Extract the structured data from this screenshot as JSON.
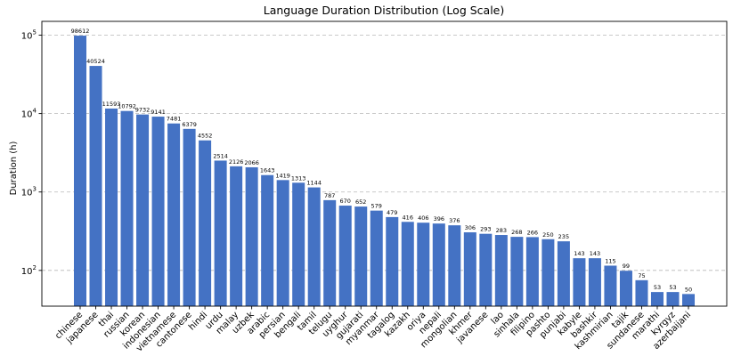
{
  "chart_data": {
    "type": "bar",
    "title": "Language Duration Distribution (Log Scale)",
    "xlabel": "",
    "ylabel": "Duration (h)",
    "yscale": "log",
    "ylim": [
      35,
      150000
    ],
    "yticks": [
      100,
      1000,
      10000,
      100000
    ],
    "ytick_labels": [
      [
        "10",
        "2"
      ],
      [
        "10",
        "3"
      ],
      [
        "10",
        "4"
      ],
      [
        "10",
        "5"
      ]
    ],
    "grid": "y-dashed",
    "bar_color": "#4472c4",
    "categories": [
      "chinese",
      "japanese",
      "thai",
      "russian",
      "korean",
      "indonesian",
      "vietnamese",
      "cantonese",
      "hindi",
      "urdu",
      "malay",
      "uzbek",
      "arabic",
      "persian",
      "bengali",
      "tamil",
      "telugu",
      "uyghur",
      "gujarati",
      "myanmar",
      "tagalog",
      "kazakh",
      "oriya",
      "nepali",
      "mongolian",
      "khmer",
      "javanese",
      "lao",
      "sinhala",
      "filipino",
      "pashto",
      "punjabi",
      "kabyle",
      "bashkir",
      "kashmirian",
      "tajik",
      "sundanese",
      "marathi",
      "kyrgyz",
      "azerbaijani"
    ],
    "values": [
      98612,
      40524,
      11593,
      10792,
      9732,
      9141,
      7481,
      6379,
      4552,
      2514,
      2126,
      2066,
      1643,
      1419,
      1313,
      1144,
      787,
      670,
      652,
      579,
      479,
      416,
      406,
      396,
      376,
      306,
      293,
      283,
      268,
      266,
      250,
      235,
      143,
      143,
      115,
      99,
      75,
      53,
      53,
      50
    ],
    "data_labels": [
      "98612",
      "40524",
      "11593",
      "10792",
      "9732",
      "9141",
      "7481",
      "6379",
      "4552",
      "2514",
      "2126",
      "2066",
      "1643",
      "1419",
      "1313",
      "1144",
      "787",
      "670",
      "652",
      "579",
      "479",
      "416",
      "406",
      "396",
      "376",
      "306",
      "293",
      "283",
      "268",
      "266",
      "250",
      "235",
      "143",
      "143",
      "115",
      "99",
      "75",
      "53",
      "53",
      "50"
    ]
  }
}
